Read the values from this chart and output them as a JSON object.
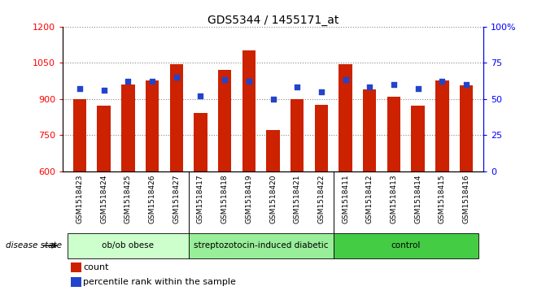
{
  "title": "GDS5344 / 1455171_at",
  "samples": [
    "GSM1518423",
    "GSM1518424",
    "GSM1518425",
    "GSM1518426",
    "GSM1518427",
    "GSM1518417",
    "GSM1518418",
    "GSM1518419",
    "GSM1518420",
    "GSM1518421",
    "GSM1518422",
    "GSM1518411",
    "GSM1518412",
    "GSM1518413",
    "GSM1518414",
    "GSM1518415",
    "GSM1518416"
  ],
  "counts": [
    900,
    870,
    960,
    975,
    1045,
    840,
    1020,
    1100,
    770,
    900,
    875,
    1045,
    940,
    910,
    870,
    975,
    955
  ],
  "percentile_ranks": [
    57,
    56,
    62,
    62,
    65,
    52,
    63,
    62,
    50,
    58,
    55,
    63,
    58,
    60,
    57,
    62,
    60
  ],
  "groups": [
    {
      "label": "ob/ob obese",
      "start": 0,
      "end": 5,
      "color": "#ccffcc"
    },
    {
      "label": "streptozotocin-induced diabetic",
      "start": 5,
      "end": 11,
      "color": "#99ee99"
    },
    {
      "label": "control",
      "start": 11,
      "end": 17,
      "color": "#44cc44"
    }
  ],
  "ylim_left": [
    600,
    1200
  ],
  "ylim_right": [
    0,
    100
  ],
  "bar_color": "#cc2200",
  "dot_color": "#2244cc",
  "bar_width": 0.55,
  "plot_bg": "#ffffff",
  "xtick_bg": "#d0d0d0",
  "title_fontsize": 10,
  "tick_label_fontsize": 6.5,
  "disease_state_label": "disease state",
  "legend_count": "count",
  "legend_percentile": "percentile rank within the sample"
}
